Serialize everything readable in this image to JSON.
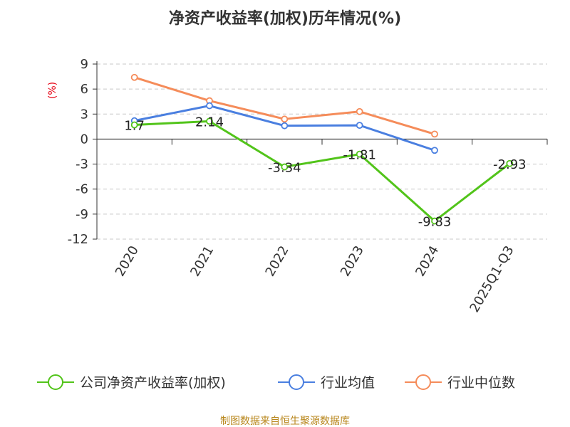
{
  "chart_data": {
    "type": "line",
    "title": "净资产收益率(加权)历年情况(%)",
    "ylabel": "(%)",
    "xlabel": "",
    "categories": [
      "2020",
      "2021",
      "2022",
      "2023",
      "2024",
      "2025Q1-Q3"
    ],
    "yticks": [
      9,
      6,
      3,
      0,
      -3,
      -6,
      -9,
      -12
    ],
    "ylim": [
      -12,
      9
    ],
    "grid": true,
    "legend_position": "bottom",
    "series": [
      {
        "name": "公司净资产收益率(加权)",
        "color": "#52c41a",
        "values": [
          1.7,
          2.14,
          -3.34,
          -1.81,
          -9.83,
          -2.93
        ],
        "labels": [
          "1.7",
          "2.14",
          "-3.34",
          "-1.81",
          "-9.83",
          "-2.93"
        ]
      },
      {
        "name": "行业均值",
        "color": "#4a7fe0",
        "values": [
          2.2,
          4.0,
          1.6,
          1.65,
          -1.35,
          null
        ]
      },
      {
        "name": "行业中位数",
        "color": "#f58c5a",
        "values": [
          7.4,
          4.6,
          2.4,
          3.3,
          0.6,
          null
        ]
      }
    ]
  },
  "source": "制图数据来自恒生聚源数据库"
}
